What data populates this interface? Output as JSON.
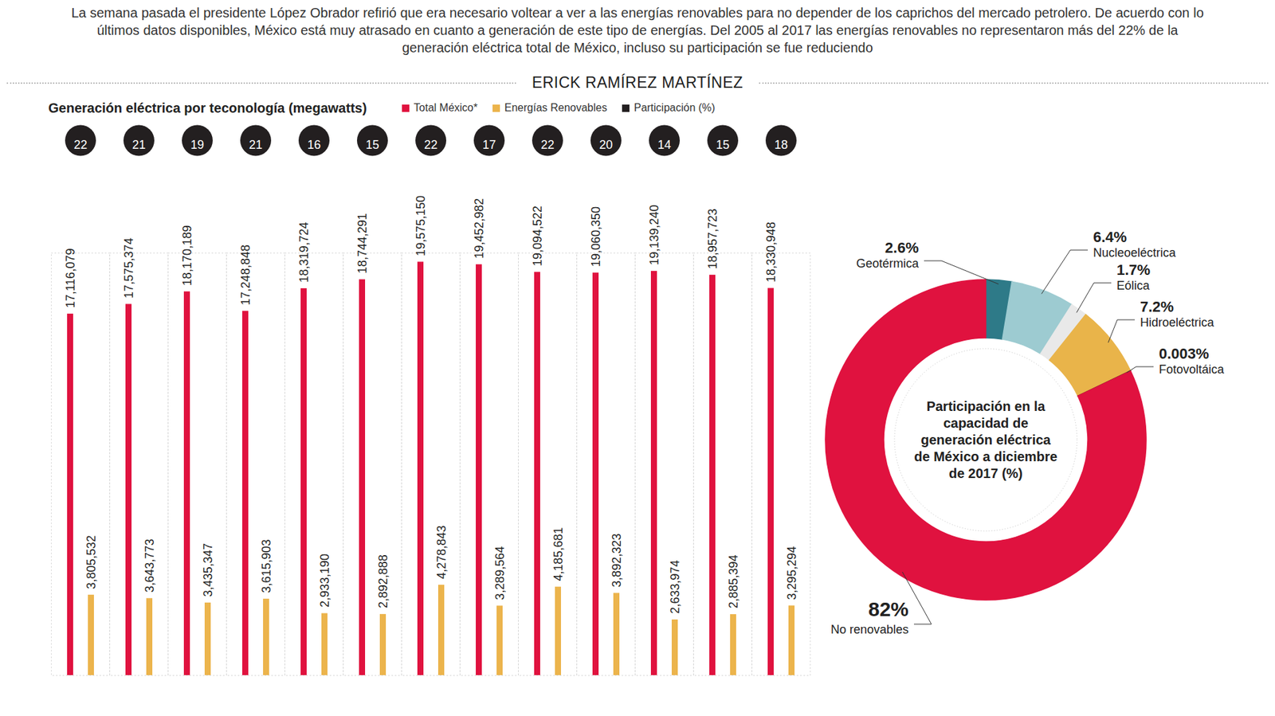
{
  "header": {
    "text": "La semana pasada el presidente López Obrador refirió que era necesario voltear a ver a las energías renovables para no depender de los caprichos del mercado petrolero. De acuerdo con lo últimos datos disponibles, México está muy atrasado en cuanto a generación de este tipo de energías. Del 2005 al 2017 las energías renovables no representaron más  del 22% de la generación eléctrica total de México, incluso su participación se fue reduciendo",
    "author": "ERICK RAMÍREZ MARTÍNEZ"
  },
  "chart_data": [
    {
      "type": "bar",
      "title": "Generación eléctrica por teconología (megawatts)",
      "categories": [
        null,
        null,
        null,
        null,
        null,
        null,
        null,
        null,
        null,
        null,
        null,
        null,
        null
      ],
      "series": [
        {
          "name": "Total México*",
          "color": "#e0123f",
          "values": [
            17116079,
            17575374,
            18170189,
            17248848,
            18319724,
            18744291,
            19575150,
            19452982,
            19094522,
            19060350,
            19139240,
            18957723,
            18330948
          ],
          "value_labels": [
            "17,116,079",
            "17,575,374",
            "18,170,189",
            "17,248,848",
            "18,319,724",
            "18,744,291",
            "19,575,150",
            "19,452,982",
            "19,094,522",
            "19,060,350",
            "19,139,240",
            "18,957,723",
            "18,330,948"
          ]
        },
        {
          "name": "Energías Renovables",
          "color": "#ecb44c",
          "values": [
            3805532,
            3643773,
            3435347,
            3615903,
            2933190,
            2892888,
            4278843,
            3289564,
            4185681,
            3892323,
            2633974,
            2885394,
            3295294
          ],
          "value_labels": [
            "3,805,532",
            "3,643,773",
            "3,435,347",
            "3,615,903",
            "2,933,190",
            "2,892,888",
            "4,278,843",
            "3,289,564",
            "4,185,681",
            "3,892,323",
            "2,633,974",
            "2,885,394",
            "3,295,294"
          ]
        },
        {
          "name": "Participación (%)",
          "color": "#231f20",
          "type": "label",
          "marker": "circle",
          "values": [
            22,
            21,
            19,
            21,
            16,
            15,
            22,
            17,
            22,
            20,
            14,
            15,
            18
          ]
        }
      ],
      "ylim": [
        0,
        20000000
      ],
      "tick_labels": false,
      "data_labels": true,
      "legend": "top"
    },
    {
      "type": "donut",
      "title": "Participación en la capacidad de generación eléctrica de México a diciembre de 2017 (%)",
      "categories": [
        "Geotérmica",
        "Nucleoeléctrica",
        "Eólica",
        "Hidroeléctrica",
        "Fotovoltáica",
        "No renovables"
      ],
      "values": [
        2.6,
        6.4,
        1.7,
        7.2,
        0.003,
        82
      ],
      "value_labels": [
        "2.6%",
        "6.4%",
        "1.7%",
        "7.2%",
        "0.003%",
        "82%"
      ],
      "colors": [
        "#2e7a88",
        "#9dcbd1",
        "#e9e9e9",
        "#e9b44a",
        "#231f20",
        "#e0123f"
      ],
      "data_labels": true
    }
  ]
}
